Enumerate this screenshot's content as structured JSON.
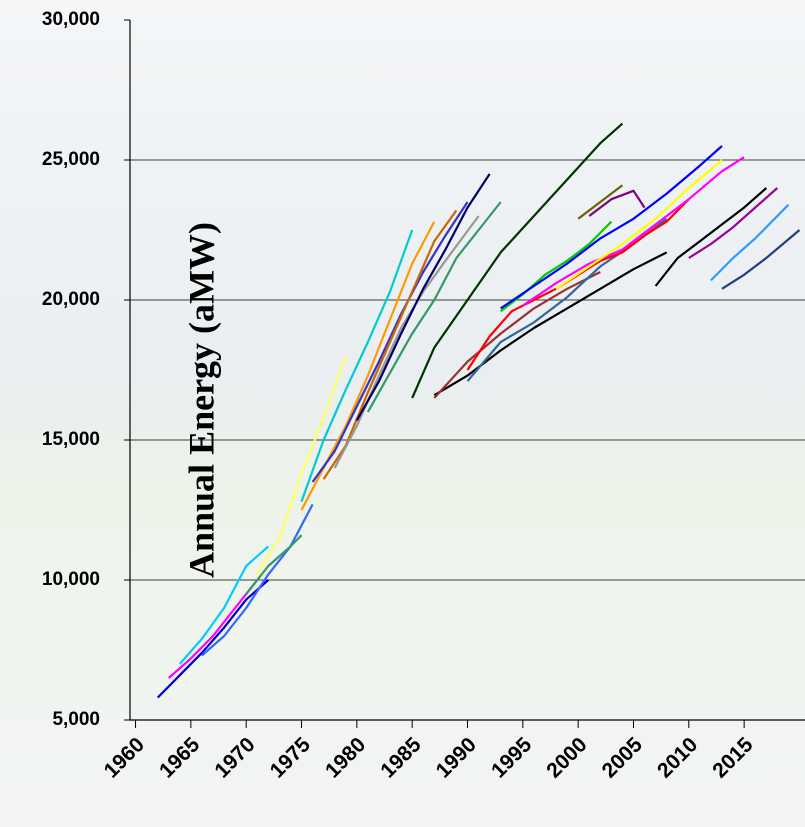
{
  "chart_data": {
    "type": "line",
    "ylabel": "Annual Energy (aMW)",
    "xlim": [
      1959.5,
      2020.5
    ],
    "xticks": [
      1960,
      1965,
      1970,
      1975,
      1980,
      1985,
      1990,
      1995,
      2000,
      2005,
      2010,
      2015
    ],
    "ylim": [
      5000,
      30000
    ],
    "yticks": [
      {
        "value": 5000,
        "label": "5,000"
      },
      {
        "value": 10000,
        "label": "10,000"
      },
      {
        "value": 15000,
        "label": "15,000"
      },
      {
        "value": 20000,
        "label": "20,000"
      },
      {
        "value": 25000,
        "label": "25,000"
      },
      {
        "value": 30000,
        "label": "30,000"
      }
    ],
    "grid": true,
    "series": [
      {
        "color": "#0000cc",
        "x": [
          1962,
          1964,
          1966,
          1968,
          1970,
          1972
        ],
        "values": [
          5800,
          6600,
          7400,
          8300,
          9300,
          10000
        ]
      },
      {
        "color": "#ff00ff",
        "x": [
          1963,
          1965,
          1967,
          1969,
          1971
        ],
        "values": [
          6500,
          7200,
          8000,
          9000,
          10000
        ]
      },
      {
        "color": "#00ccff",
        "x": [
          1964,
          1966,
          1968,
          1970,
          1972
        ],
        "values": [
          7000,
          7900,
          9000,
          10500,
          11200
        ]
      },
      {
        "color": "#3366ff",
        "x": [
          1966,
          1968,
          1970,
          1972,
          1974,
          1976
        ],
        "values": [
          7300,
          8000,
          9000,
          10200,
          11200,
          12700
        ]
      },
      {
        "color": "#339966",
        "x": [
          1970,
          1972,
          1974,
          1975
        ],
        "values": [
          9500,
          10500,
          11200,
          11600
        ]
      },
      {
        "color": "#ffff66",
        "x": [
          1971,
          1973,
          1975,
          1977,
          1979
        ],
        "values": [
          10200,
          11500,
          13800,
          15800,
          18000
        ]
      },
      {
        "color": "#ff9900",
        "x": [
          1975,
          1977,
          1979,
          1981,
          1983,
          1985,
          1987
        ],
        "values": [
          12500,
          14000,
          15500,
          17300,
          19300,
          21300,
          22800
        ]
      },
      {
        "color": "#00cccc",
        "x": [
          1975,
          1977,
          1979,
          1981,
          1983,
          1985
        ],
        "values": [
          12800,
          15000,
          16800,
          18500,
          20300,
          22500
        ]
      },
      {
        "color": "#3333cc",
        "x": [
          1976,
          1978,
          1980,
          1982,
          1984,
          1986,
          1988,
          1990
        ],
        "values": [
          13500,
          14600,
          16200,
          17800,
          19500,
          21000,
          22300,
          23500
        ]
      },
      {
        "color": "#cc6600",
        "x": [
          1977,
          1979,
          1981,
          1983,
          1985,
          1987,
          1989
        ],
        "values": [
          13600,
          14800,
          16700,
          18500,
          20300,
          22100,
          23200
        ]
      },
      {
        "color": "#999999",
        "x": [
          1978,
          1980,
          1982,
          1984,
          1986,
          1988,
          1991
        ],
        "values": [
          14000,
          15500,
          17300,
          19000,
          20300,
          21400,
          23000
        ]
      },
      {
        "color": "#000066",
        "x": [
          1980,
          1982,
          1984,
          1986,
          1988,
          1990,
          1992
        ],
        "values": [
          15700,
          17100,
          18800,
          20400,
          21800,
          23300,
          24500
        ]
      },
      {
        "color": "#339966",
        "x": [
          1981,
          1983,
          1985,
          1987,
          1989,
          1991,
          1993
        ],
        "values": [
          16000,
          17400,
          18800,
          20000,
          21500,
          22500,
          23500
        ]
      },
      {
        "color": "#003300",
        "x": [
          1985,
          1987,
          1990,
          1993,
          1996,
          1999,
          2002,
          2004
        ],
        "values": [
          16500,
          18300,
          20000,
          21700,
          23000,
          24300,
          25600,
          26300
        ]
      },
      {
        "color": "#000000",
        "x": [
          1987,
          1990,
          1993,
          1996,
          1999,
          2002,
          2005,
          2008
        ],
        "values": [
          16600,
          17300,
          18200,
          19000,
          19700,
          20400,
          21100,
          21700
        ]
      },
      {
        "color": "#993333",
        "x": [
          1987,
          1990,
          1993,
          1996,
          1999,
          2002
        ],
        "values": [
          16500,
          17800,
          18800,
          19700,
          20400,
          21000
        ]
      },
      {
        "color": "#336699",
        "x": [
          1990,
          1993,
          1996,
          1999,
          2002,
          2005,
          2008
        ],
        "values": [
          17100,
          18500,
          19200,
          20100,
          21200,
          22000,
          22900
        ]
      },
      {
        "color": "#ff0000",
        "x": [
          1990,
          1992,
          1994,
          1996,
          1998,
          2000,
          2002,
          2004,
          2006,
          2008,
          2010
        ],
        "values": [
          17500,
          18700,
          19600,
          20000,
          20400,
          20900,
          21400,
          21700,
          22300,
          22800,
          23600
        ]
      },
      {
        "color": "#00cc00",
        "x": [
          1993,
          1995,
          1997,
          1999,
          2001,
          2003
        ],
        "values": [
          19600,
          20200,
          20900,
          21400,
          22000,
          22800
        ]
      },
      {
        "color": "#0000ff",
        "x": [
          1993,
          1996,
          1999,
          2002,
          2005,
          2008,
          2011,
          2013
        ],
        "values": [
          19700,
          20500,
          21300,
          22200,
          22900,
          23800,
          24800,
          25500
        ]
      },
      {
        "color": "#ff00ff",
        "x": [
          1995,
          1998,
          2001,
          2004,
          2007,
          2010,
          2013,
          2015
        ],
        "values": [
          19800,
          20600,
          21300,
          21800,
          22700,
          23600,
          24600,
          25100
        ]
      },
      {
        "color": "#ffff00",
        "x": [
          1998,
          2001,
          2004,
          2007,
          2010,
          2013
        ],
        "values": [
          20400,
          21200,
          22000,
          22900,
          24000,
          25000
        ]
      },
      {
        "color": "#666600",
        "x": [
          2000,
          2002,
          2004
        ],
        "values": [
          22900,
          23500,
          24100
        ]
      },
      {
        "color": "#800080",
        "x": [
          2001,
          2003,
          2005,
          2006
        ],
        "values": [
          23000,
          23600,
          23900,
          23300
        ]
      },
      {
        "color": "#000000",
        "x": [
          2007,
          2009,
          2011,
          2013,
          2015,
          2017
        ],
        "values": [
          20500,
          21500,
          22100,
          22700,
          23300,
          24000
        ]
      },
      {
        "color": "#990099",
        "x": [
          2010,
          2012,
          2014,
          2016,
          2018
        ],
        "values": [
          21500,
          22000,
          22600,
          23300,
          24000
        ]
      },
      {
        "color": "#3399ff",
        "x": [
          2012,
          2014,
          2016,
          2019
        ],
        "values": [
          20700,
          21500,
          22200,
          23400
        ]
      },
      {
        "color": "#1f3f7f",
        "x": [
          2013,
          2015,
          2017,
          2020
        ],
        "values": [
          20400,
          20900,
          21500,
          22500
        ]
      }
    ]
  }
}
